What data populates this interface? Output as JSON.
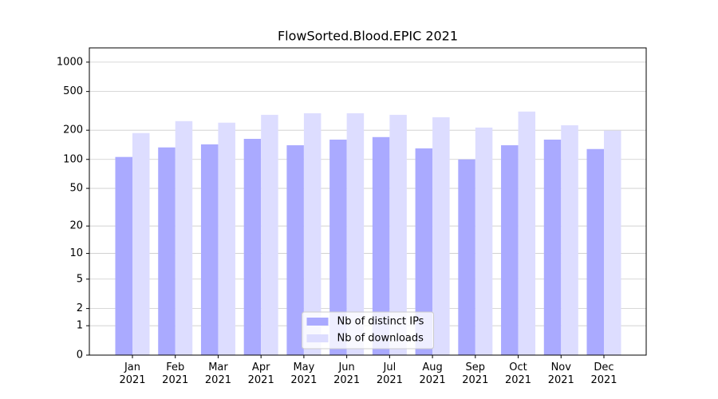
{
  "chart_data": {
    "type": "bar",
    "title": "FlowSorted.Blood.EPIC 2021",
    "categories": [
      "Jan\n2021",
      "Feb\n2021",
      "Mar\n2021",
      "Apr\n2021",
      "May\n2021",
      "Jun\n2021",
      "Jul\n2021",
      "Aug\n2021",
      "Sep\n2021",
      "Oct\n2021",
      "Nov\n2021",
      "Dec\n2021"
    ],
    "series": [
      {
        "name": "Nb of distinct IPs",
        "color": "#aaaaff",
        "values": [
          106,
          133,
          143,
          163,
          140,
          160,
          170,
          130,
          100,
          140,
          160,
          128
        ]
      },
      {
        "name": "Nb of downloads",
        "color": "#ddddff",
        "values": [
          187,
          248,
          239,
          288,
          299,
          299,
          288,
          272,
          213,
          311,
          225,
          198
        ]
      }
    ],
    "yscale": "log1p",
    "ylim": [
      0,
      1400
    ],
    "yticks": [
      0,
      1,
      2,
      5,
      10,
      20,
      50,
      100,
      200,
      500,
      1000
    ],
    "grid": true,
    "legend": "lower center"
  }
}
